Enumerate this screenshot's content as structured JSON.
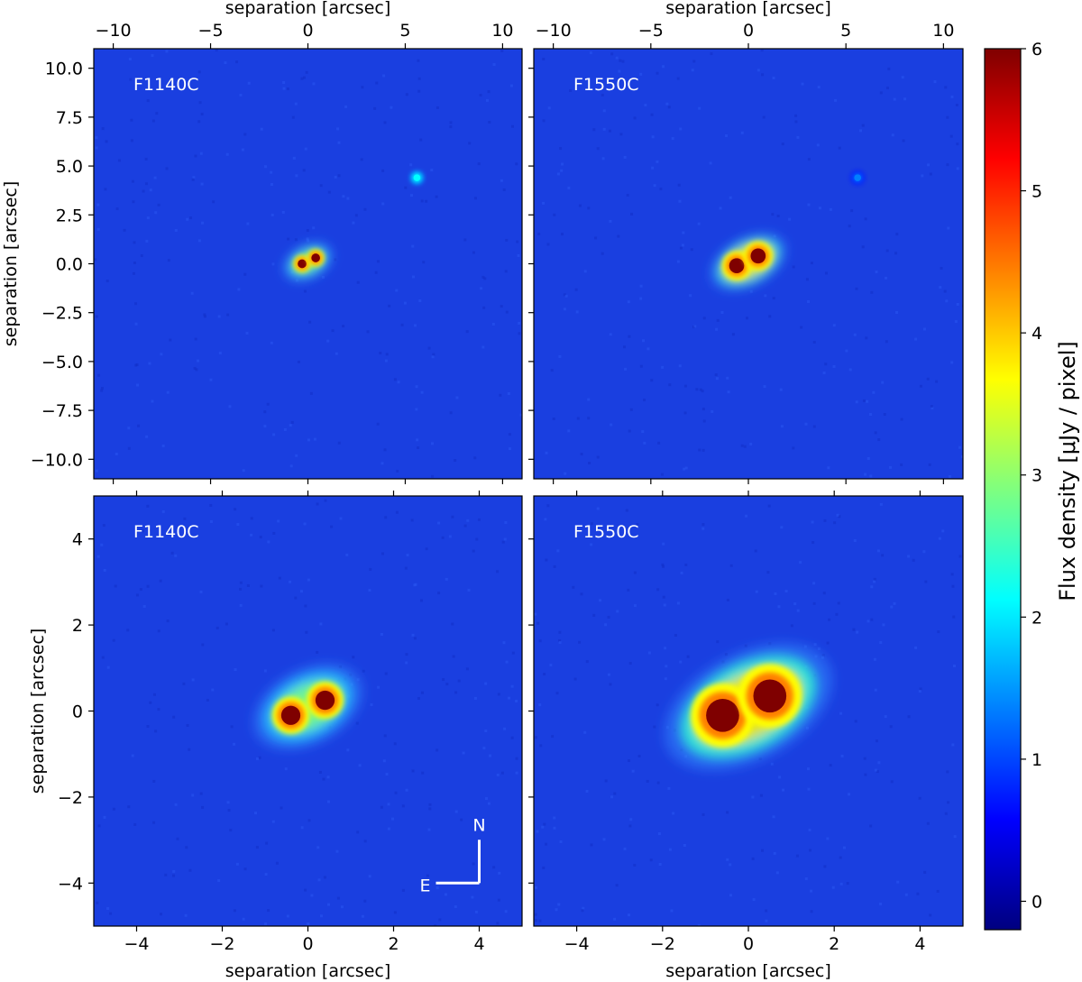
{
  "chart_data": [
    {
      "type": "heatmap",
      "panel_label": "F1140C",
      "xlabel_top": "separation [arcsec]",
      "ylabel": "separation [arcsec]",
      "xlim": [
        -11,
        11
      ],
      "ylim": [
        -11,
        11
      ],
      "xticks": [
        -10,
        -5,
        0,
        5,
        10
      ],
      "xtick_labels": [
        "−10",
        "−5",
        "0",
        "5",
        "10"
      ],
      "yticks": [
        10,
        7.5,
        5,
        2.5,
        0,
        -2.5,
        -5,
        -7.5,
        -10
      ],
      "ytick_labels": [
        "10.0",
        "7.5",
        "5.0",
        "2.5",
        "0.0",
        "−2.5",
        "−5.0",
        "−7.5",
        "−10.0"
      ],
      "features": [
        {
          "x": -0.3,
          "y": 0.0,
          "peak": 6
        },
        {
          "x": 0.4,
          "y": 0.3,
          "peak": 6
        },
        {
          "x": 5.6,
          "y": 4.4,
          "peak": 2.5
        }
      ]
    },
    {
      "type": "heatmap",
      "panel_label": "F1550C",
      "xlabel_top": "separation [arcsec]",
      "xlim": [
        -11,
        11
      ],
      "ylim": [
        -11,
        11
      ],
      "xticks": [
        -10,
        -5,
        0,
        5,
        10
      ],
      "xtick_labels": [
        "−10",
        "−5",
        "0",
        "5",
        "10"
      ],
      "features": [
        {
          "x": -0.6,
          "y": -0.1,
          "peak": 6
        },
        {
          "x": 0.5,
          "y": 0.4,
          "peak": 6
        },
        {
          "x": 5.6,
          "y": 4.4,
          "peak": 1.5
        }
      ]
    },
    {
      "type": "heatmap",
      "panel_label": "F1140C",
      "xlabel": "separation [arcsec]",
      "ylabel": "separation [arcsec]",
      "xlim": [
        -5,
        5
      ],
      "ylim": [
        -5,
        5
      ],
      "xticks": [
        -4,
        -2,
        0,
        2,
        4
      ],
      "xtick_labels": [
        "−4",
        "−2",
        "0",
        "2",
        "4"
      ],
      "yticks": [
        4,
        2,
        0,
        -2,
        -4
      ],
      "ytick_labels": [
        "4",
        "2",
        "0",
        "−2",
        "−4"
      ],
      "compass": {
        "north": "N",
        "east": "E"
      },
      "features": [
        {
          "x": -0.4,
          "y": -0.1,
          "peak": 6
        },
        {
          "x": 0.4,
          "y": 0.25,
          "peak": 6
        }
      ]
    },
    {
      "type": "heatmap",
      "panel_label": "F1550C",
      "xlabel": "separation [arcsec]",
      "xlim": [
        -5,
        5
      ],
      "ylim": [
        -5,
        5
      ],
      "xticks": [
        -4,
        -2,
        0,
        2,
        4
      ],
      "xtick_labels": [
        "−4",
        "−2",
        "0",
        "2",
        "4"
      ],
      "features": [
        {
          "x": -0.6,
          "y": -0.1,
          "peak": 6
        },
        {
          "x": 0.5,
          "y": 0.35,
          "peak": 6
        }
      ]
    }
  ],
  "colorbar": {
    "label": "Flux density [μJy / pixel]",
    "range": [
      -0.2,
      6
    ],
    "ticks": [
      0,
      1,
      2,
      3,
      4,
      5,
      6
    ],
    "tick_labels": [
      "0",
      "1",
      "2",
      "3",
      "4",
      "5",
      "6"
    ],
    "colormap": "jet",
    "colors": [
      "#00007f",
      "#0000ff",
      "#007fff",
      "#00ffff",
      "#7fff7f",
      "#ffff00",
      "#ff7f00",
      "#ff0000",
      "#7f0000"
    ]
  }
}
